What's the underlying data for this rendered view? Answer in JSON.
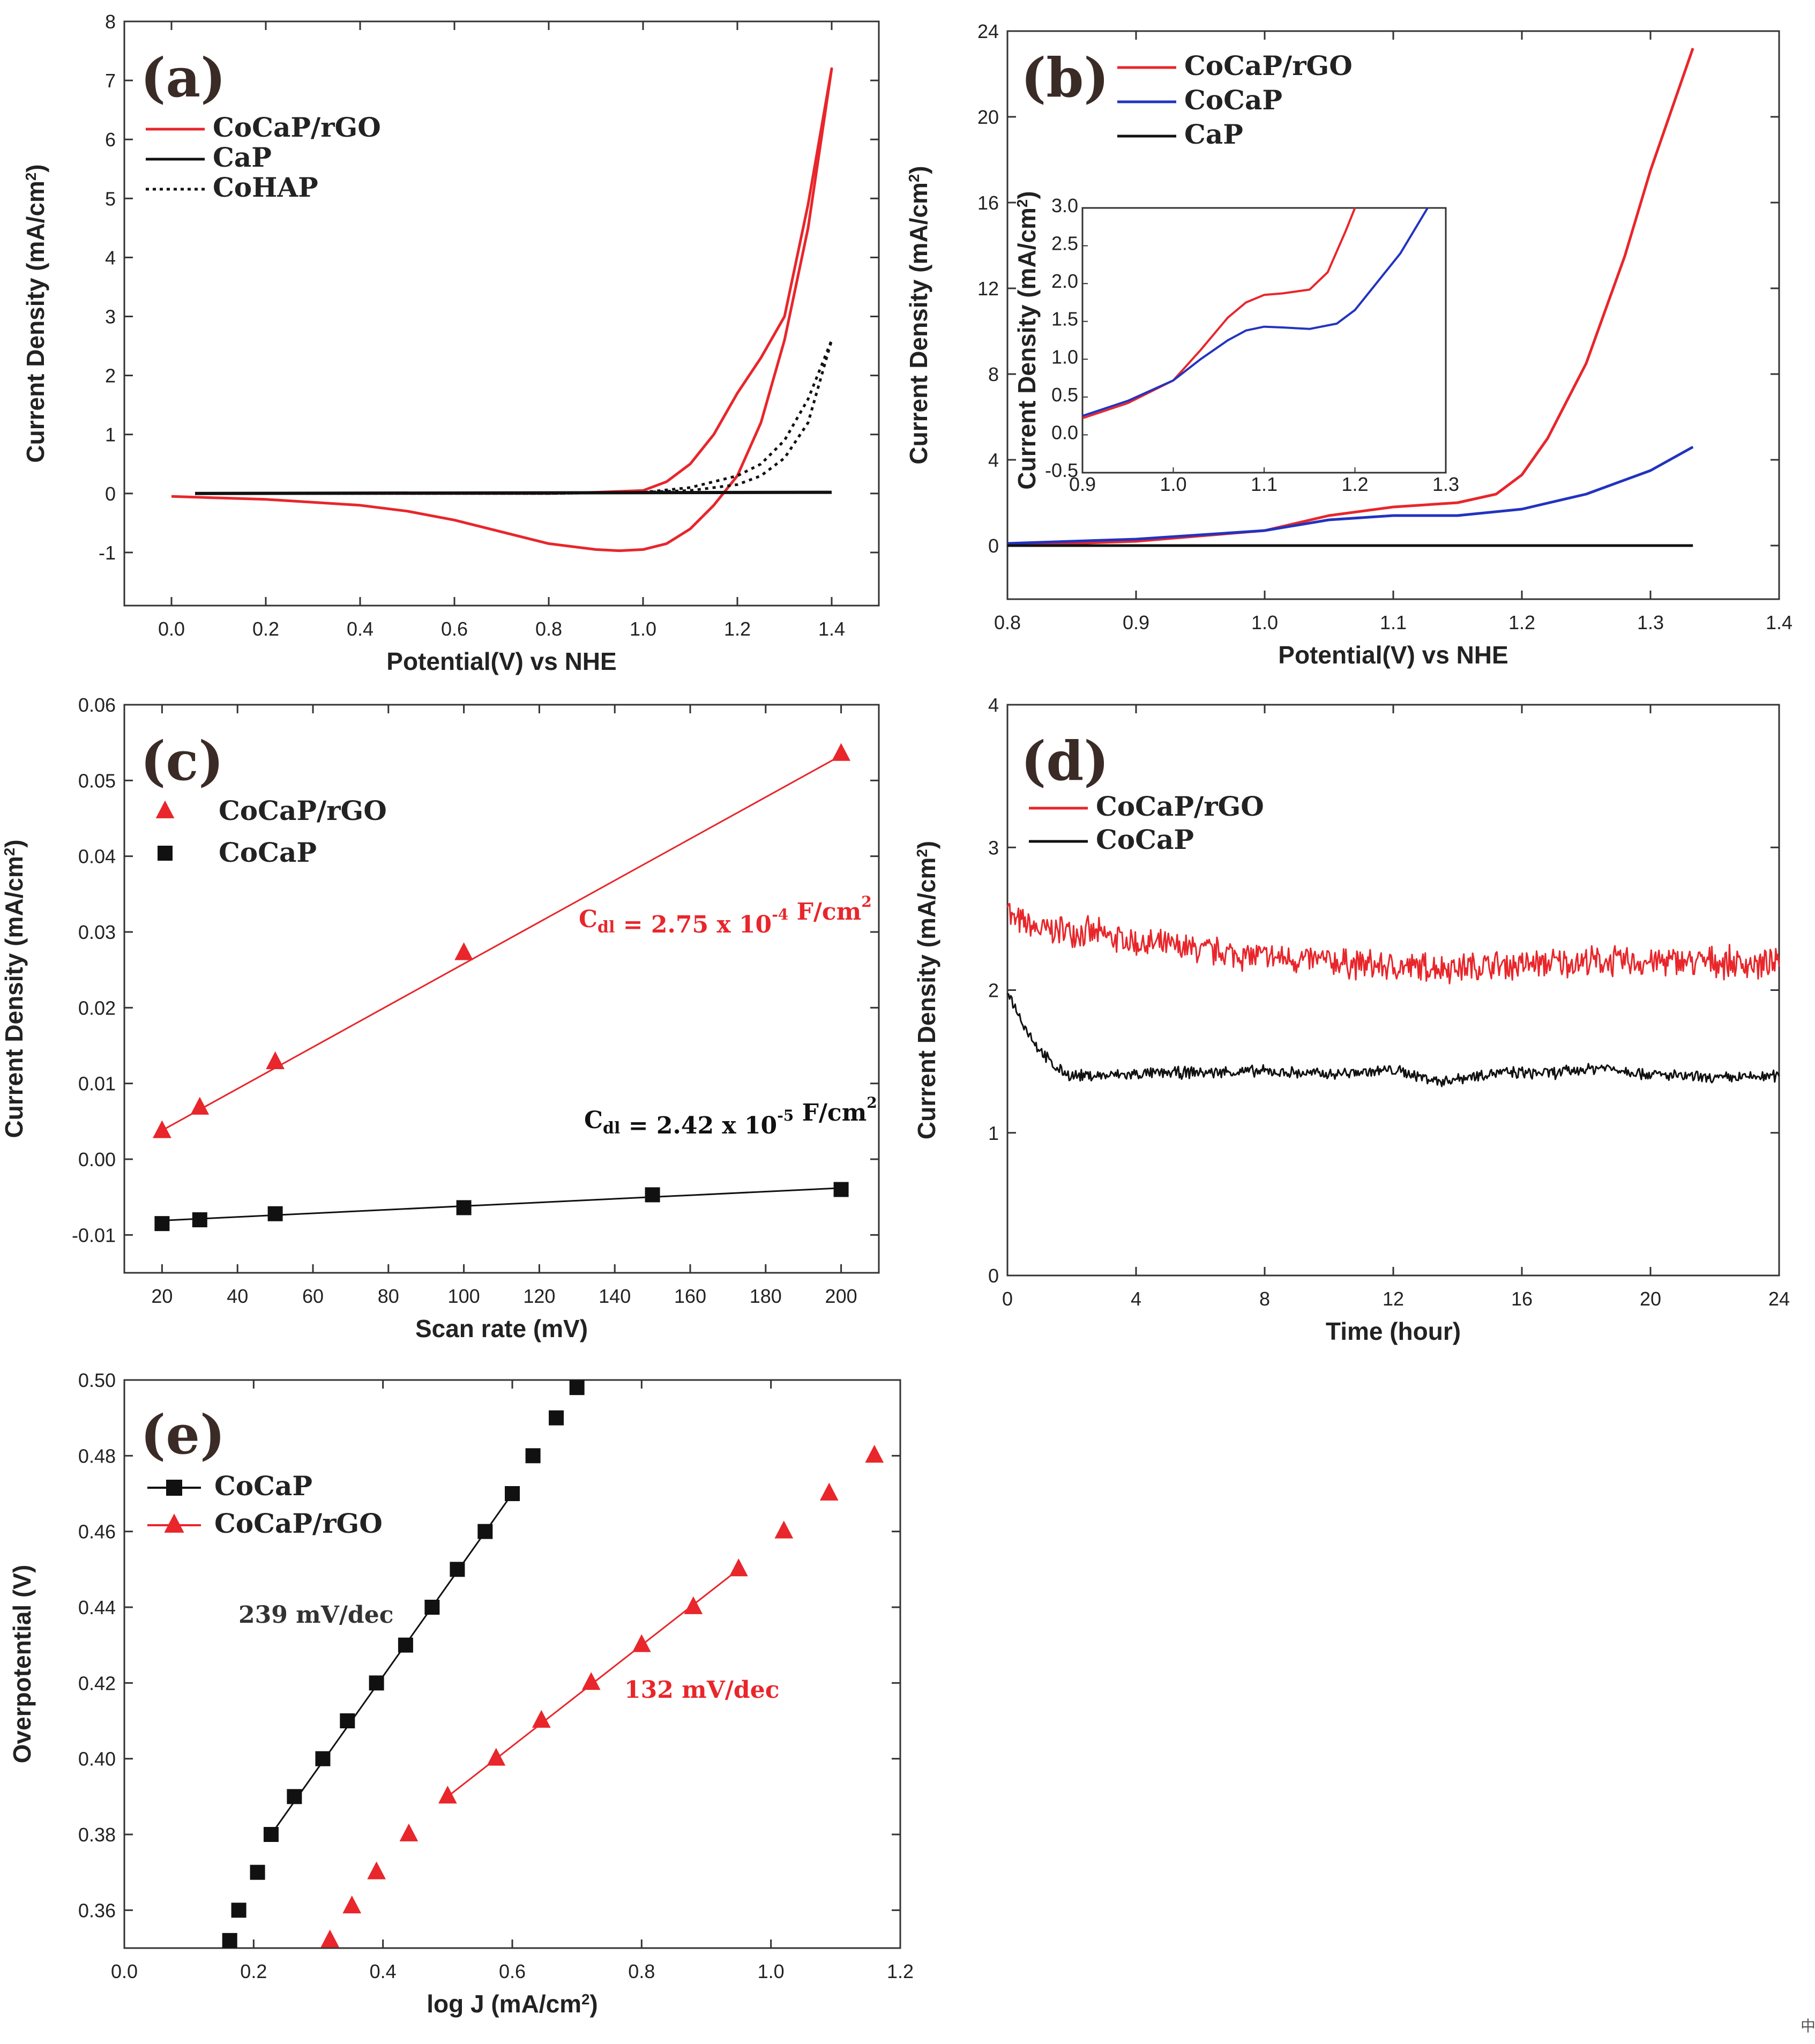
{
  "corner_mark": "中",
  "chart_data": [
    {
      "panel_label": "(a)",
      "type": "line",
      "xlabel": "Potential(V) vs NHE",
      "ylabel": "Current Density (mA/cm²)",
      "xlim": [
        -0.1,
        1.5
      ],
      "ylim": [
        -1.9,
        8
      ],
      "xticks": [
        0.0,
        0.2,
        0.4,
        0.6,
        0.8,
        1.0,
        1.2,
        1.4
      ],
      "xtick_labels": [
        "0.0",
        "0.2",
        "0.4",
        "0.6",
        "0.8",
        "1.0",
        "1.2",
        "1.4"
      ],
      "yticks": [
        -1,
        0,
        1,
        2,
        3,
        4,
        5,
        6,
        7,
        8
      ],
      "ytick_labels": [
        "-1",
        "0",
        "1",
        "2",
        "3",
        "4",
        "5",
        "6",
        "7",
        "8"
      ],
      "legend": [
        {
          "name": "CoCaP/rGO",
          "color": "#e8262b",
          "style": "solid"
        },
        {
          "name": "CaP",
          "color": "#111111",
          "style": "solid"
        },
        {
          "name": "CoHAP",
          "color": "#111111",
          "style": "dotted"
        }
      ],
      "series": [
        {
          "name": "CoCaP/rGO",
          "color": "#e8262b",
          "style": "solid",
          "x": [
            0.0,
            0.2,
            0.4,
            0.5,
            0.6,
            0.7,
            0.8,
            0.9,
            0.95,
            1.0,
            1.05,
            1.1,
            1.15,
            1.2,
            1.25,
            1.3,
            1.35,
            1.4,
            1.35,
            1.3,
            1.25,
            1.2,
            1.15,
            1.1,
            1.05,
            1.0,
            0.9,
            0.8,
            0.6,
            0.4,
            0.2,
            0.05
          ],
          "y": [
            -0.05,
            -0.1,
            -0.2,
            -0.3,
            -0.45,
            -0.65,
            -0.85,
            -0.95,
            -0.97,
            -0.95,
            -0.85,
            -0.6,
            -0.2,
            0.3,
            1.2,
            2.6,
            4.5,
            7.2,
            4.9,
            3.0,
            2.3,
            1.7,
            1.0,
            0.5,
            0.2,
            0.05,
            0.02,
            0.0,
            0.0,
            0.0,
            0.0,
            0.0
          ]
        },
        {
          "name": "CaP",
          "color": "#111111",
          "style": "solid",
          "x": [
            0.05,
            1.4
          ],
          "y": [
            0.0,
            0.02
          ]
        },
        {
          "name": "CoHAP",
          "color": "#111111",
          "style": "dotted",
          "x": [
            0.05,
            0.8,
            1.0,
            1.1,
            1.2,
            1.25,
            1.3,
            1.35,
            1.4,
            1.35,
            1.3,
            1.25,
            1.2,
            1.1,
            1.0,
            0.8,
            0.05
          ],
          "y": [
            0.0,
            0.0,
            0.02,
            0.05,
            0.15,
            0.3,
            0.6,
            1.2,
            2.6,
            1.6,
            0.9,
            0.5,
            0.3,
            0.1,
            0.02,
            0.0,
            0.0
          ]
        }
      ]
    },
    {
      "panel_label": "(b)",
      "type": "line",
      "xlabel": "Potential(V) vs NHE",
      "ylabel": "Current Density (mA/cm²)",
      "xlim": [
        0.8,
        1.4
      ],
      "ylim": [
        -2.5,
        24
      ],
      "xticks": [
        0.8,
        0.9,
        1.0,
        1.1,
        1.2,
        1.3,
        1.4
      ],
      "xtick_labels": [
        "0.8",
        "0.9",
        "1.0",
        "1.1",
        "1.2",
        "1.3",
        "1.4"
      ],
      "yticks": [
        0,
        4,
        8,
        12,
        16,
        20,
        24
      ],
      "ytick_labels": [
        "0",
        "4",
        "8",
        "12",
        "16",
        "20",
        "24"
      ],
      "legend": [
        {
          "name": "CoCaP/rGO",
          "color": "#e8262b",
          "style": "solid"
        },
        {
          "name": "CoCaP",
          "color": "#2233c0",
          "style": "solid"
        },
        {
          "name": "CaP",
          "color": "#111111",
          "style": "solid"
        }
      ],
      "series": [
        {
          "name": "CoCaP/rGO",
          "color": "#e8262b",
          "style": "solid",
          "x": [
            0.8,
            0.9,
            1.0,
            1.05,
            1.1,
            1.15,
            1.18,
            1.2,
            1.22,
            1.25,
            1.28,
            1.3,
            1.333
          ],
          "y": [
            0.0,
            0.2,
            0.7,
            1.4,
            1.8,
            2.0,
            2.4,
            3.3,
            5.0,
            8.5,
            13.5,
            17.5,
            23.2
          ]
        },
        {
          "name": "CoCaP",
          "color": "#2233c0",
          "style": "solid",
          "x": [
            0.8,
            0.9,
            1.0,
            1.05,
            1.1,
            1.15,
            1.2,
            1.25,
            1.3,
            1.333
          ],
          "y": [
            0.1,
            0.3,
            0.7,
            1.2,
            1.4,
            1.4,
            1.7,
            2.4,
            3.5,
            4.6
          ]
        },
        {
          "name": "CaP",
          "color": "#111111",
          "style": "solid",
          "x": [
            0.8,
            1.333
          ],
          "y": [
            0.0,
            0.0
          ]
        }
      ],
      "inset": {
        "xlim": [
          0.9,
          1.3
        ],
        "ylim": [
          -0.5,
          3.0
        ],
        "xticks": [
          0.9,
          1.0,
          1.1,
          1.2,
          1.3
        ],
        "xtick_labels": [
          "0.9",
          "1.0",
          "1.1",
          "1.2",
          "1.3"
        ],
        "yticks": [
          -0.5,
          0.0,
          0.5,
          1.0,
          1.5,
          2.0,
          2.5,
          3.0
        ],
        "ytick_labels": [
          "-0.5",
          "0.0",
          "0.5",
          "1.0",
          "1.5",
          "2.0",
          "2.5",
          "3.0"
        ],
        "ylabel": "Current Density (mA/cm²)",
        "series": [
          {
            "name": "CoCaP/rGO",
            "color": "#e8262b",
            "x": [
              0.9,
              0.95,
              1.0,
              1.03,
              1.06,
              1.08,
              1.1,
              1.12,
              1.15,
              1.17,
              1.19,
              1.2
            ],
            "y": [
              0.22,
              0.42,
              0.72,
              1.12,
              1.55,
              1.75,
              1.85,
              1.87,
              1.92,
              2.15,
              2.7,
              3.0
            ]
          },
          {
            "name": "CoCaP",
            "color": "#2233c0",
            "x": [
              0.9,
              0.95,
              1.0,
              1.03,
              1.06,
              1.08,
              1.1,
              1.12,
              1.15,
              1.18,
              1.2,
              1.22,
              1.25,
              1.28
            ],
            "y": [
              0.25,
              0.45,
              0.72,
              1.0,
              1.25,
              1.38,
              1.43,
              1.42,
              1.4,
              1.47,
              1.65,
              1.95,
              2.4,
              3.0
            ]
          }
        ]
      }
    },
    {
      "panel_label": "(c)",
      "type": "scatter",
      "xlabel": "Scan rate (mV)",
      "ylabel": "Current Density (mA/cm²)",
      "xlim": [
        10,
        210
      ],
      "ylim": [
        -0.015,
        0.06
      ],
      "xticks": [
        20,
        40,
        60,
        80,
        100,
        120,
        140,
        160,
        180,
        200
      ],
      "xtick_labels": [
        "20",
        "40",
        "60",
        "80",
        "100",
        "120",
        "140",
        "160",
        "180",
        "200"
      ],
      "yticks": [
        -0.01,
        0.0,
        0.01,
        0.02,
        0.03,
        0.04,
        0.05,
        0.06
      ],
      "ytick_labels": [
        "-0.01",
        "0.00",
        "0.01",
        "0.02",
        "0.03",
        "0.04",
        "0.05",
        "0.06"
      ],
      "legend": [
        {
          "name": "CoCaP/rGO",
          "color": "#e8262b",
          "marker": "triangle"
        },
        {
          "name": "CoCaP",
          "color": "#111111",
          "marker": "square"
        }
      ],
      "series": [
        {
          "name": "CoCaP/rGO",
          "color": "#e8262b",
          "marker": "triangle",
          "x": [
            20,
            30,
            50,
            100,
            200
          ],
          "y": [
            0.0037,
            0.0068,
            0.0128,
            0.0272,
            0.0535
          ],
          "fit": {
            "x": [
              20,
              200
            ],
            "y": [
              0.0038,
              0.0533
            ]
          }
        },
        {
          "name": "CoCaP",
          "color": "#111111",
          "marker": "square",
          "x": [
            20,
            30,
            50,
            100,
            150,
            200
          ],
          "y": [
            -0.0085,
            -0.008,
            -0.0072,
            -0.0064,
            -0.0047,
            -0.004
          ],
          "fit": {
            "x": [
              20,
              200
            ],
            "y": [
              -0.0081,
              -0.0038
            ]
          }
        }
      ],
      "annotations": [
        {
          "prefix": "C",
          "sub": "dl",
          "mid": " = 2.75 x 10",
          "sup": "-4",
          "tail": " F/cm",
          "sup2": "2",
          "color": "#e8262b"
        },
        {
          "prefix": "C",
          "sub": "dl",
          "mid": " = 2.42 x 10",
          "sup": "-5",
          "tail": " F/cm",
          "sup2": "2",
          "color": "#111111"
        }
      ]
    },
    {
      "panel_label": "(d)",
      "type": "line",
      "xlabel": "Time (hour)",
      "ylabel": "Current Density (mA/cm²)",
      "xlim": [
        0,
        24
      ],
      "ylim": [
        0,
        4
      ],
      "xticks": [
        0,
        4,
        8,
        12,
        16,
        20,
        24
      ],
      "xtick_labels": [
        "0",
        "4",
        "8",
        "12",
        "16",
        "20",
        "24"
      ],
      "yticks": [
        0,
        1,
        2,
        3,
        4
      ],
      "ytick_labels": [
        "0",
        "1",
        "2",
        "3",
        "4"
      ],
      "legend": [
        {
          "name": "CoCaP/rGO",
          "color": "#e8262b",
          "style": "solid"
        },
        {
          "name": "CoCaP",
          "color": "#111111",
          "style": "solid"
        }
      ],
      "series": [
        {
          "name": "CoCaP/rGO",
          "color": "#e8262b",
          "noise": 0.09,
          "x": [
            0,
            0.1,
            1,
            2,
            3,
            4,
            6,
            8,
            10,
            12,
            14,
            16,
            18,
            20,
            22,
            24
          ],
          "y": [
            2.7,
            2.5,
            2.42,
            2.42,
            2.38,
            2.33,
            2.28,
            2.23,
            2.2,
            2.16,
            2.16,
            2.18,
            2.2,
            2.2,
            2.2,
            2.17
          ]
        },
        {
          "name": "CoCaP",
          "color": "#111111",
          "noise": 0.035,
          "x": [
            0,
            0.3,
            0.6,
            1.0,
            1.5,
            2.0,
            3,
            5,
            8,
            10,
            12,
            13.5,
            15,
            17,
            18.5,
            20,
            22,
            24
          ],
          "y": [
            2.0,
            1.85,
            1.72,
            1.58,
            1.45,
            1.4,
            1.4,
            1.42,
            1.43,
            1.41,
            1.44,
            1.36,
            1.42,
            1.42,
            1.46,
            1.41,
            1.38,
            1.4
          ]
        }
      ]
    },
    {
      "panel_label": "(e)",
      "type": "scatter",
      "xlabel": "log J (mA/cm²)",
      "ylabel": "Overpotential (V)",
      "xlim": [
        0.0,
        1.2
      ],
      "ylim": [
        0.35,
        0.5
      ],
      "xticks": [
        0.0,
        0.2,
        0.4,
        0.6,
        0.8,
        1.0,
        1.2
      ],
      "xtick_labels": [
        "0.0",
        "0.2",
        "0.4",
        "0.6",
        "0.8",
        "1.0",
        "1.2"
      ],
      "yticks": [
        0.36,
        0.38,
        0.4,
        0.42,
        0.44,
        0.46,
        0.48,
        0.5
      ],
      "ytick_labels": [
        "0.36",
        "0.38",
        "0.40",
        "0.42",
        "0.44",
        "0.46",
        "0.48",
        "0.50"
      ],
      "legend": [
        {
          "name": "CoCaP",
          "color": "#111111",
          "marker": "square"
        },
        {
          "name": "CoCaP/rGO",
          "color": "#e8262b",
          "marker": "triangle"
        }
      ],
      "series": [
        {
          "name": "CoCaP",
          "color": "#111111",
          "marker": "square",
          "x": [
            0.163,
            0.177,
            0.206,
            0.227,
            0.263,
            0.307,
            0.345,
            0.39,
            0.435,
            0.476,
            0.515,
            0.558,
            0.6,
            0.632,
            0.668,
            0.7
          ],
          "y": [
            0.352,
            0.36,
            0.37,
            0.38,
            0.39,
            0.4,
            0.41,
            0.42,
            0.43,
            0.44,
            0.45,
            0.46,
            0.47,
            0.48,
            0.49,
            0.498
          ],
          "fit": {
            "x": [
              0.227,
              0.6
            ],
            "y": [
              0.38,
              0.47
            ]
          }
        },
        {
          "name": "CoCaP/rGO",
          "color": "#e8262b",
          "marker": "triangle",
          "x": [
            0.318,
            0.352,
            0.39,
            0.44,
            0.5,
            0.575,
            0.645,
            0.722,
            0.8,
            0.88,
            0.95,
            1.02,
            1.09,
            1.16
          ],
          "y": [
            0.352,
            0.361,
            0.37,
            0.38,
            0.39,
            0.4,
            0.41,
            0.42,
            0.43,
            0.44,
            0.45,
            0.46,
            0.47,
            0.48
          ],
          "fit": {
            "x": [
              0.5,
              0.95
            ],
            "y": [
              0.39,
              0.45
            ]
          }
        }
      ],
      "annotations": [
        {
          "text": "239 mV/dec",
          "color": "#333333"
        },
        {
          "text": "132 mV/dec",
          "color": "#e8262b"
        }
      ]
    }
  ]
}
